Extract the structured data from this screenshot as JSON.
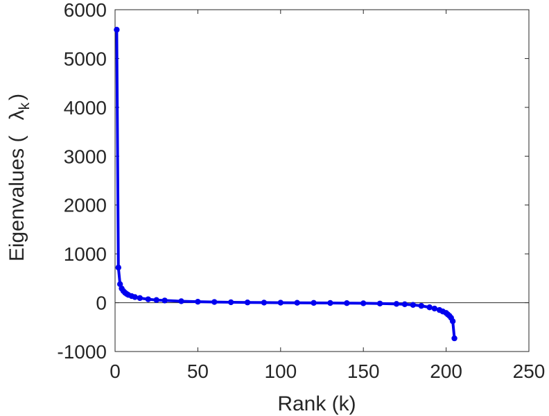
{
  "chart_data": {
    "type": "line",
    "title": "",
    "xlabel": "Rank (k)",
    "ylabel_prefix": "Eigenvalues (",
    "ylabel_symbol": "λ",
    "ylabel_subscript": "k",
    "ylabel_suffix": ")",
    "xlim": [
      0,
      250
    ],
    "ylim": [
      -1000,
      6000
    ],
    "xticks": [
      "0",
      "50",
      "100",
      "150",
      "200",
      "250"
    ],
    "yticks": [
      "-1000",
      "0",
      "1000",
      "2000",
      "3000",
      "4000",
      "5000",
      "6000"
    ],
    "grid": false,
    "zero_line": true,
    "marker": "circle",
    "series_color": "#0000ee",
    "series": [
      {
        "x": [
          1,
          2,
          3,
          4,
          5,
          6,
          7,
          8,
          10,
          12,
          15,
          20,
          25,
          30,
          40,
          50,
          60,
          70,
          80,
          90,
          100,
          110,
          120,
          130,
          140,
          150,
          160,
          170,
          175,
          180,
          185,
          190,
          193,
          196,
          198,
          200,
          201,
          202,
          203,
          204,
          205
        ],
        "values": [
          5590,
          720,
          380,
          290,
          240,
          205,
          180,
          160,
          135,
          115,
          95,
          70,
          55,
          45,
          30,
          20,
          14,
          9,
          5,
          2,
          0,
          -2,
          -4,
          -6,
          -9,
          -12,
          -17,
          -25,
          -32,
          -45,
          -65,
          -95,
          -120,
          -150,
          -180,
          -210,
          -240,
          -270,
          -310,
          -380,
          -730
        ]
      }
    ]
  }
}
